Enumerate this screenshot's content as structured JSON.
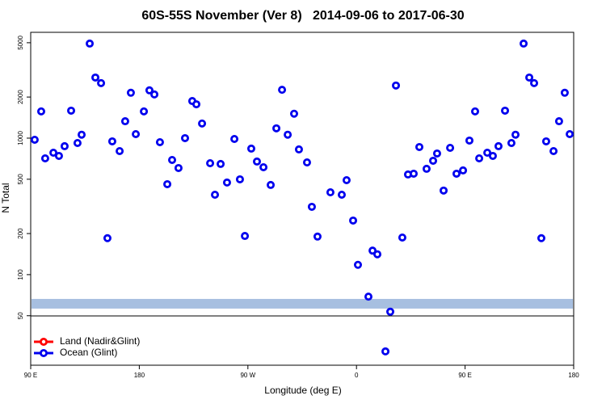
{
  "chart_data": {
    "type": "scatter",
    "title": "60S-55S November (Ver 8)   2014-09-06 to 2017-06-30",
    "xlabel": "Longitude (deg E)",
    "ylabel": "N Total",
    "xlim": [
      90,
      540
    ],
    "xticks": [
      {
        "value": 90,
        "label": "90 E"
      },
      {
        "value": 180,
        "label": "180"
      },
      {
        "value": 270,
        "label": "90 W"
      },
      {
        "value": 360,
        "label": "0"
      },
      {
        "value": 450,
        "label": "90 E"
      },
      {
        "value": 540,
        "label": "180"
      }
    ],
    "ylim": [
      21.7,
      5960
    ],
    "yscale": "log",
    "yticks": [
      50,
      100,
      200,
      500,
      1000,
      2000,
      5000
    ],
    "legend": "lower left",
    "band": {
      "color": "#a7bfe0",
      "range": [
        56.4,
        66.4
      ]
    },
    "series": [
      {
        "name": "Land (Nadir&Glint)",
        "color": "#ff0000",
        "x": [],
        "values": []
      },
      {
        "name": "Ocean (Glint)",
        "color": "#0000ee",
        "x": [
          93.3,
          98.7,
          102.0,
          108.8,
          113.4,
          118.1,
          123.5,
          128.8,
          132.2,
          138.9,
          143.6,
          148.3,
          153.6,
          157.6,
          163.7,
          168.3,
          173.0,
          177.1,
          183.8,
          188.4,
          192.5,
          197.1,
          203.2,
          207.2,
          212.5,
          217.9,
          223.9,
          227.3,
          232.0,
          238.7,
          242.7,
          247.4,
          252.7,
          258.8,
          263.4,
          267.5,
          272.8,
          277.5,
          282.9,
          288.9,
          293.6,
          298.3,
          303.0,
          308.3,
          312.3,
          319.0,
          323.0,
          327.7,
          338.4,
          347.8,
          351.8,
          357.2,
          361.2,
          369.9,
          373.3,
          377.3,
          384.0,
          388.0,
          392.7,
          398.0,
          402.7,
          407.4,
          412.1,
          418.1,
          423.5,
          426.8,
          432.2,
          437.6,
          442.9,
          448.3,
          453.6,
          458.3,
          461.7,
          468.4,
          473.0,
          477.7,
          483.1,
          488.4,
          491.8,
          498.5,
          503.2,
          507.2,
          513.2,
          517.2,
          523.3,
          527.9,
          532.6,
          536.7
        ],
        "values": [
          973,
          1570,
          711,
          782,
          741,
          873,
          1590,
          921,
          1060,
          4930,
          2780,
          2530,
          185,
          947,
          804,
          1330,
          2150,
          1070,
          1570,
          2240,
          2090,
          934,
          460,
          692,
          604,
          1000,
          1870,
          1770,
          1280,
          655,
          385,
          647,
          473,
          986,
          499,
          192,
          838,
          674,
          612,
          454,
          1180,
          2260,
          1060,
          1510,
          827,
          664,
          314,
          190,
          401,
          385,
          492,
          249,
          118,
          69,
          150,
          141,
          27.4,
          53.5,
          2430,
          187,
          542,
          549,
          861,
          596,
          683,
          772,
          413,
          849,
          549,
          580,
          960,
          1570,
          711,
          782,
          741,
          873,
          1590,
          921,
          1060,
          4930,
          2780,
          2530,
          185,
          947,
          804,
          1330,
          2150,
          1070
        ]
      }
    ]
  }
}
